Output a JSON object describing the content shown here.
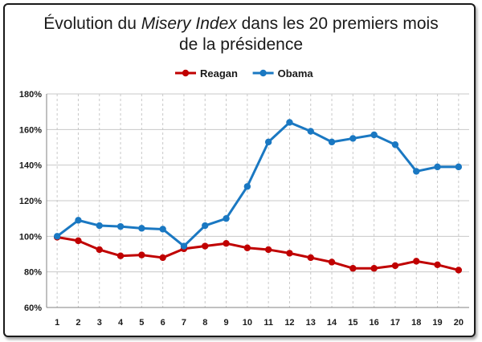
{
  "chart_data": {
    "type": "line",
    "title_line1_pre": "Évolution du ",
    "title_line1_italic": "Misery Index",
    "title_line1_post": " dans les 20 premiers mois",
    "title_line2": "de la présidence",
    "x": [
      1,
      2,
      3,
      4,
      5,
      6,
      7,
      8,
      9,
      10,
      11,
      12,
      13,
      14,
      15,
      16,
      17,
      18,
      19,
      20
    ],
    "x_tick_labels": [
      "1",
      "2",
      "3",
      "4",
      "5",
      "6",
      "7",
      "8",
      "9",
      "10",
      "11",
      "12",
      "13",
      "14",
      "15",
      "16",
      "17",
      "18",
      "19",
      "20"
    ],
    "y_tick_labels": [
      "60%",
      "80%",
      "100%",
      "120%",
      "140%",
      "160%",
      "180%"
    ],
    "y_ticks": [
      60,
      80,
      100,
      120,
      140,
      160,
      180
    ],
    "ylim": [
      60,
      180
    ],
    "y_unit": "%",
    "grid": true,
    "legend_position": "top-center",
    "series": [
      {
        "name": "Reagan",
        "color": "#c00000",
        "values": [
          99.5,
          97.5,
          92.5,
          89,
          89.5,
          88,
          93,
          94.5,
          96,
          93.5,
          92.5,
          90.5,
          88,
          85.5,
          82,
          82,
          83.5,
          86,
          84,
          81
        ]
      },
      {
        "name": "Obama",
        "color": "#1a78c2",
        "values": [
          100,
          109,
          106,
          105.5,
          104.5,
          104,
          94.5,
          106,
          110,
          128,
          153,
          164,
          159,
          153,
          155,
          157,
          151.5,
          136.5,
          139,
          139
        ]
      }
    ]
  }
}
